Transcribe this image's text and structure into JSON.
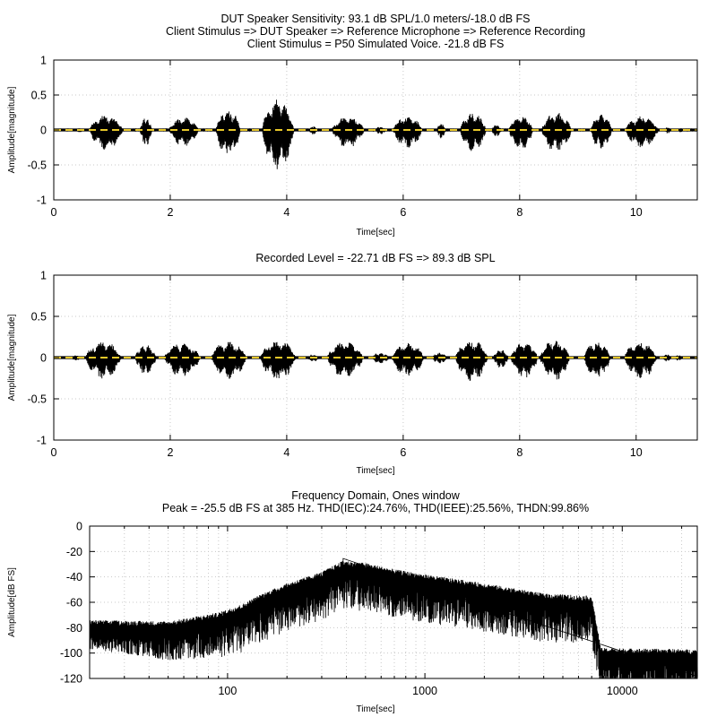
{
  "chart_data": [
    {
      "type": "line",
      "title": [
        "DUT Speaker Sensitivity: 93.1 dB SPL/1.0 meters/-18.0 dB FS",
        "Client Stimulus => DUT Speaker => Reference Microphone => Reference Recording",
        "Client Stimulus = P50 Simulated Voice. -21.8 dB FS"
      ],
      "xlabel": "Time[sec]",
      "ylabel": "Amplitude[magnitude]",
      "xlim": [
        0,
        11.05
      ],
      "ylim": [
        -1,
        1
      ],
      "xticks": [
        0,
        2,
        4,
        6,
        8,
        10
      ],
      "yticks": [
        -1,
        -0.5,
        0,
        0.5,
        1
      ],
      "grid": true,
      "series": [
        {
          "color": "#000000",
          "segments": [
            {
              "t0": 0.38,
              "t1": 0.5,
              "amp": 0.03
            },
            {
              "t0": 0.62,
              "t1": 1.18,
              "amp": 0.22
            },
            {
              "t0": 1.48,
              "t1": 1.68,
              "amp": 0.18
            },
            {
              "t0": 1.98,
              "t1": 2.48,
              "amp": 0.18
            },
            {
              "t0": 2.78,
              "t1": 3.2,
              "amp": 0.3
            },
            {
              "t0": 3.58,
              "t1": 4.12,
              "amp": 0.45
            },
            {
              "t0": 4.38,
              "t1": 4.52,
              "amp": 0.06
            },
            {
              "t0": 4.78,
              "t1": 5.32,
              "amp": 0.2
            },
            {
              "t0": 5.52,
              "t1": 5.7,
              "amp": 0.05
            },
            {
              "t0": 5.82,
              "t1": 6.32,
              "amp": 0.2
            },
            {
              "t0": 6.58,
              "t1": 6.72,
              "amp": 0.1
            },
            {
              "t0": 6.98,
              "t1": 7.42,
              "amp": 0.25
            },
            {
              "t0": 7.52,
              "t1": 7.68,
              "amp": 0.08
            },
            {
              "t0": 7.82,
              "t1": 8.22,
              "amp": 0.22
            },
            {
              "t0": 8.38,
              "t1": 8.88,
              "amp": 0.25
            },
            {
              "t0": 9.22,
              "t1": 9.58,
              "amp": 0.22
            },
            {
              "t0": 9.82,
              "t1": 10.38,
              "amp": 0.2
            },
            {
              "t0": 10.48,
              "t1": 10.6,
              "amp": 0.04
            },
            {
              "t0": 10.72,
              "t1": 10.8,
              "amp": 0.03
            }
          ]
        },
        {
          "color": "#e8c82a",
          "dashed": true,
          "value": 0
        }
      ]
    },
    {
      "type": "line",
      "title": [
        "Recorded Level = -22.71 dB FS  => 89.3 dB SPL"
      ],
      "xlabel": "Time[sec]",
      "ylabel": "Amplitude[magnitude]",
      "xlim": [
        0,
        11.05
      ],
      "ylim": [
        -1,
        1
      ],
      "xticks": [
        0,
        2,
        4,
        6,
        8,
        10
      ],
      "yticks": [
        -1,
        -0.5,
        0,
        0.5,
        1
      ],
      "grid": true,
      "series": [
        {
          "color": "#000000",
          "segments": [
            {
              "t0": 0.3,
              "t1": 0.45,
              "amp": 0.03
            },
            {
              "t0": 0.55,
              "t1": 1.15,
              "amp": 0.2
            },
            {
              "t0": 1.4,
              "t1": 1.75,
              "amp": 0.16
            },
            {
              "t0": 1.9,
              "t1": 2.5,
              "amp": 0.18
            },
            {
              "t0": 2.7,
              "t1": 3.3,
              "amp": 0.2
            },
            {
              "t0": 3.55,
              "t1": 4.15,
              "amp": 0.22
            },
            {
              "t0": 4.35,
              "t1": 4.55,
              "amp": 0.04
            },
            {
              "t0": 4.7,
              "t1": 5.3,
              "amp": 0.2
            },
            {
              "t0": 5.45,
              "t1": 5.75,
              "amp": 0.06
            },
            {
              "t0": 5.8,
              "t1": 6.35,
              "amp": 0.18
            },
            {
              "t0": 6.5,
              "t1": 6.75,
              "amp": 0.06
            },
            {
              "t0": 6.9,
              "t1": 7.45,
              "amp": 0.22
            },
            {
              "t0": 7.55,
              "t1": 7.8,
              "amp": 0.1
            },
            {
              "t0": 7.85,
              "t1": 8.3,
              "amp": 0.2
            },
            {
              "t0": 8.35,
              "t1": 8.85,
              "amp": 0.22
            },
            {
              "t0": 9.1,
              "t1": 9.55,
              "amp": 0.2
            },
            {
              "t0": 9.8,
              "t1": 10.35,
              "amp": 0.2
            },
            {
              "t0": 10.45,
              "t1": 10.6,
              "amp": 0.04
            },
            {
              "t0": 10.65,
              "t1": 10.8,
              "amp": 0.03
            }
          ]
        },
        {
          "color": "#e8c82a",
          "dashed": true,
          "value": 0
        }
      ]
    },
    {
      "type": "line",
      "title": [
        "Frequency Domain, Ones window",
        "Peak = -25.5 dB FS at 385 Hz. THD(IEC):24.76%, THD(IEEE):25.56%, THDN:99.86%"
      ],
      "xlabel": "Time[sec]",
      "ylabel": "Amplitude[dB FS]",
      "xscale": "log",
      "xlim": [
        20,
        24000
      ],
      "ylim": [
        -120,
        0
      ],
      "xticks": [
        100,
        1000,
        10000
      ],
      "yticks": [
        -120,
        -100,
        -80,
        -60,
        -40,
        -20,
        0
      ],
      "grid": true,
      "series": [
        {
          "color": "#000000",
          "envelope": [
            {
              "f": 20,
              "db": -81
            },
            {
              "f": 50,
              "db": -82
            },
            {
              "f": 90,
              "db": -75
            },
            {
              "f": 120,
              "db": -68
            },
            {
              "f": 150,
              "db": -60
            },
            {
              "f": 200,
              "db": -52
            },
            {
              "f": 300,
              "db": -43
            },
            {
              "f": 385,
              "db": -34
            },
            {
              "f": 500,
              "db": -36
            },
            {
              "f": 700,
              "db": -41
            },
            {
              "f": 1000,
              "db": -45
            },
            {
              "f": 2000,
              "db": -52
            },
            {
              "f": 4000,
              "db": -60
            },
            {
              "f": 7000,
              "db": -62
            },
            {
              "f": 7800,
              "db": -103
            },
            {
              "f": 24000,
              "db": -104
            }
          ],
          "peak": {
            "f": 385,
            "db": -25.5
          }
        }
      ]
    }
  ]
}
